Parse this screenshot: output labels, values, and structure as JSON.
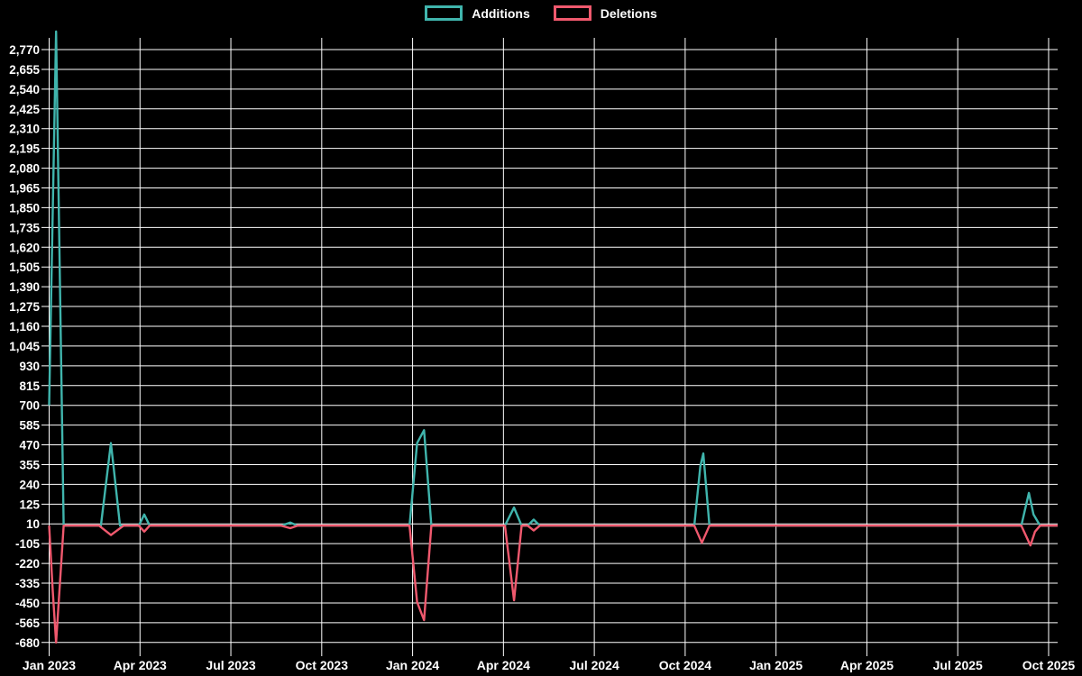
{
  "chart_data": {
    "type": "line",
    "title": "",
    "xlabel": "",
    "ylabel": "",
    "grid": true,
    "background_color": "#000000",
    "gridline_color": "#ffffff",
    "text_color": "#ffffff",
    "legend_position": "top-center",
    "x_axis": {
      "unit": "months_since_jan_2023",
      "range": [
        0,
        33.3
      ],
      "tick_labels": [
        "Jan 2023",
        "Apr 2023",
        "Jul 2023",
        "Oct 2023",
        "Jan 2024",
        "Apr 2024",
        "Jul 2024",
        "Oct 2024",
        "Jan 2025",
        "Apr 2025",
        "Jul 2025",
        "Oct 2025"
      ],
      "tick_positions": [
        0,
        3,
        6,
        9,
        12,
        15,
        18,
        21,
        24,
        27,
        30,
        33
      ]
    },
    "y_axis": {
      "range": [
        -680,
        2875
      ],
      "tick_step": 115,
      "tick_values": [
        2770,
        2655,
        2540,
        2425,
        2310,
        2195,
        2080,
        1965,
        1850,
        1735,
        1620,
        1505,
        1390,
        1275,
        1160,
        1045,
        930,
        815,
        700,
        585,
        470,
        355,
        240,
        125,
        10,
        -105,
        -220,
        -335,
        -450,
        -565,
        -680
      ],
      "tick_labels": [
        "2,770",
        "2,655",
        "2,540",
        "2,425",
        "2,310",
        "2,195",
        "2,080",
        "1,965",
        "1,850",
        "1,735",
        "1,620",
        "1,505",
        "1,390",
        "1,275",
        "1,160",
        "1,045",
        "930",
        "815",
        "700",
        "585",
        "470",
        "355",
        "240",
        "125",
        "10",
        "-105",
        "-220",
        "-335",
        "-450",
        "-565",
        "-680"
      ]
    },
    "series": [
      {
        "name": "Additions",
        "color": "#40b5ad",
        "points": [
          [
            0,
            700
          ],
          [
            0.23,
            2875
          ],
          [
            0.48,
            0
          ],
          [
            1.71,
            0
          ],
          [
            2.04,
            480
          ],
          [
            2.13,
            340
          ],
          [
            2.34,
            0
          ],
          [
            2.96,
            0
          ],
          [
            3.14,
            65
          ],
          [
            3.32,
            0
          ],
          [
            7.66,
            0
          ],
          [
            7.96,
            18
          ],
          [
            8.2,
            0
          ],
          [
            11.9,
            0
          ],
          [
            12.15,
            480
          ],
          [
            12.38,
            555
          ],
          [
            12.62,
            0
          ],
          [
            15.05,
            0
          ],
          [
            15.35,
            105
          ],
          [
            15.6,
            0
          ],
          [
            15.8,
            0
          ],
          [
            16.0,
            35
          ],
          [
            16.2,
            0
          ],
          [
            21.3,
            0
          ],
          [
            21.5,
            345
          ],
          [
            21.6,
            420
          ],
          [
            21.8,
            0
          ],
          [
            32.1,
            0
          ],
          [
            32.35,
            190
          ],
          [
            32.5,
            65
          ],
          [
            32.72,
            0
          ],
          [
            33.3,
            0
          ]
        ]
      },
      {
        "name": "Deletions",
        "color": "#f0596e",
        "points": [
          [
            0,
            0
          ],
          [
            0.12,
            -380
          ],
          [
            0.23,
            -680
          ],
          [
            0.48,
            0
          ],
          [
            1.65,
            0
          ],
          [
            2.04,
            -55
          ],
          [
            2.46,
            0
          ],
          [
            2.96,
            0
          ],
          [
            3.14,
            -35
          ],
          [
            3.32,
            0
          ],
          [
            7.66,
            0
          ],
          [
            7.96,
            -15
          ],
          [
            8.2,
            0
          ],
          [
            11.9,
            0
          ],
          [
            12.15,
            -445
          ],
          [
            12.38,
            -550
          ],
          [
            12.62,
            0
          ],
          [
            15.05,
            0
          ],
          [
            15.35,
            -435
          ],
          [
            15.6,
            0
          ],
          [
            15.8,
            0
          ],
          [
            16.0,
            -28
          ],
          [
            16.2,
            0
          ],
          [
            21.3,
            0
          ],
          [
            21.55,
            -100
          ],
          [
            21.8,
            0
          ],
          [
            32.1,
            0
          ],
          [
            32.4,
            -115
          ],
          [
            32.55,
            -35
          ],
          [
            32.72,
            0
          ],
          [
            33.3,
            0
          ]
        ]
      }
    ]
  },
  "legend": {
    "additions_label": "Additions",
    "deletions_label": "Deletions"
  }
}
